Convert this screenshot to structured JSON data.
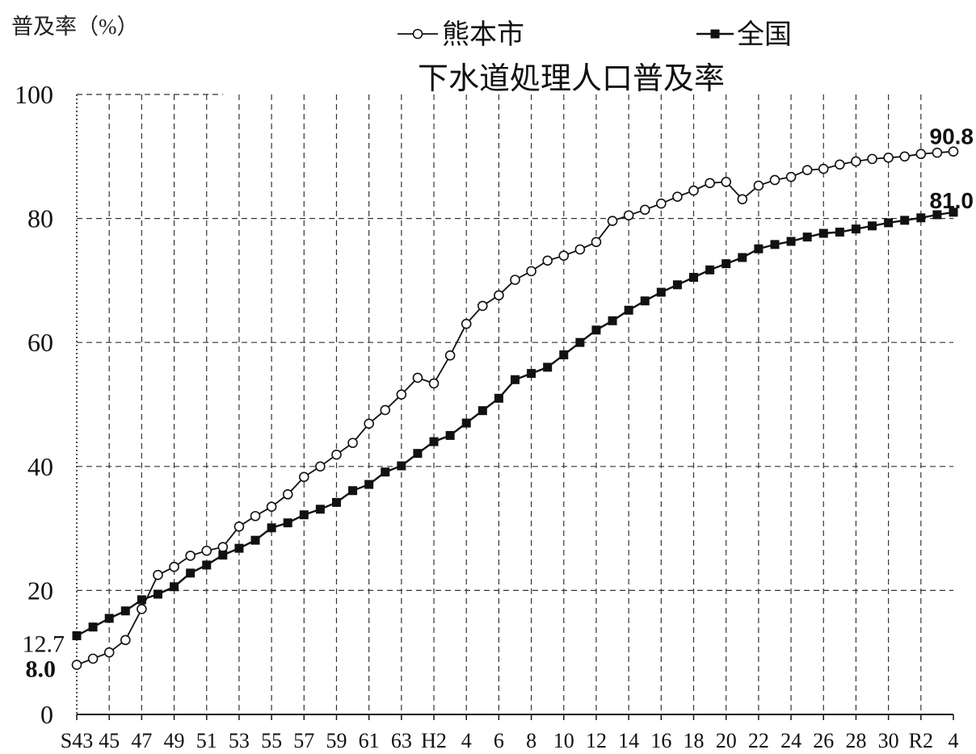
{
  "chart_data": {
    "type": "line",
    "title": "下水道処理人口普及率",
    "ylabel": "普及率（%）",
    "ylim": [
      0,
      100
    ],
    "yticks": [
      0,
      20,
      40,
      60,
      80,
      100
    ],
    "grid": true,
    "legend": "top",
    "categories": [
      "S43",
      "",
      "45",
      "",
      "47",
      "",
      "49",
      "",
      "51",
      "",
      "53",
      "",
      "55",
      "",
      "57",
      "",
      "59",
      "",
      "61",
      "",
      "63",
      "",
      "H2",
      "",
      "4",
      "",
      "6",
      "",
      "8",
      "",
      "10",
      "",
      "12",
      "",
      "14",
      "",
      "16",
      "",
      "18",
      "",
      "20",
      "",
      "22",
      "",
      "24",
      "",
      "26",
      "",
      "28",
      "",
      "30",
      "",
      "R2",
      "",
      "4"
    ],
    "series": [
      {
        "name": "熊本市",
        "marker": "open-circle",
        "color": "#000000",
        "start_label": "8.0",
        "end_label": "90.8",
        "values": [
          8.0,
          9.0,
          10.0,
          12.0,
          17.0,
          22.5,
          23.8,
          25.6,
          26.4,
          27.0,
          30.3,
          32.0,
          33.5,
          35.5,
          38.3,
          40.0,
          41.9,
          43.8,
          46.9,
          49.1,
          51.6,
          54.3,
          53.4,
          57.9,
          63.0,
          65.9,
          67.6,
          70.1,
          71.5,
          73.2,
          74.0,
          75.0,
          76.2,
          79.6,
          80.5,
          81.4,
          82.4,
          83.5,
          84.5,
          85.7,
          85.9,
          83.1,
          85.3,
          86.2,
          86.7,
          87.8,
          88.0,
          88.7,
          89.2,
          89.6,
          89.8,
          90.0,
          90.4,
          90.6,
          90.8
        ]
      },
      {
        "name": "全国",
        "marker": "filled-square",
        "color": "#000000",
        "start_label": "12.7",
        "end_label": "81.0",
        "values": [
          12.7,
          14.1,
          15.5,
          16.7,
          18.5,
          19.4,
          20.6,
          22.8,
          24.1,
          25.7,
          26.8,
          28.1,
          30.1,
          30.9,
          32.2,
          33.1,
          34.2,
          36.1,
          37.1,
          39.1,
          40.1,
          42.1,
          44.0,
          45.0,
          47.0,
          49.0,
          51.0,
          54.0,
          55.0,
          56.0,
          58.0,
          60.0,
          62.0,
          63.5,
          65.2,
          66.7,
          68.1,
          69.3,
          70.5,
          71.7,
          72.7,
          73.7,
          75.1,
          75.8,
          76.3,
          77.0,
          77.6,
          77.8,
          78.3,
          78.8,
          79.3,
          79.7,
          80.1,
          80.6,
          81.0
        ]
      }
    ]
  }
}
